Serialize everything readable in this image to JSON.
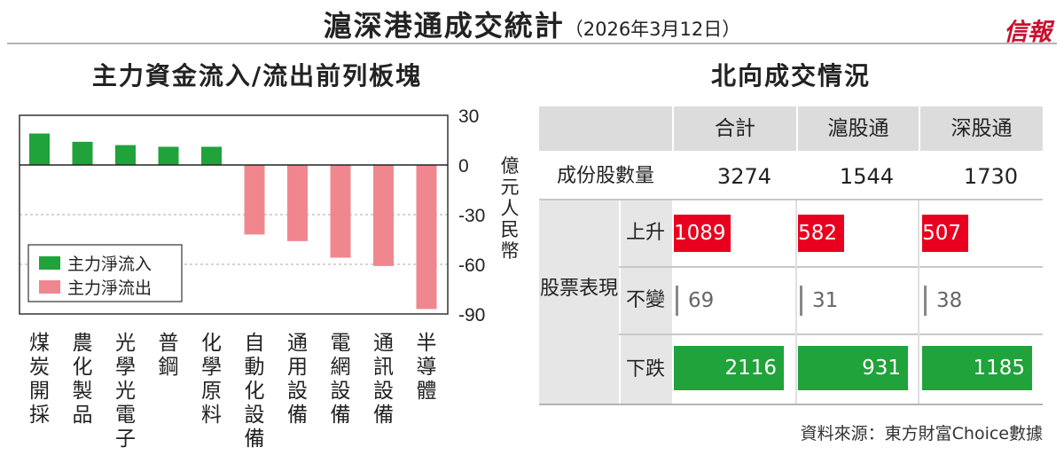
{
  "header": {
    "title": "滬深港通成交統計",
    "date": "（2026年3月12日）",
    "logo": "信報"
  },
  "chart_data": {
    "type": "bar",
    "title": "主力資金流入/流出前列板塊",
    "ylabel": "億元人民幣",
    "ylim": [
      -90,
      30
    ],
    "yticks": [
      30,
      0,
      -30,
      -60,
      -90
    ],
    "categories": [
      "煤炭開採",
      "農化製品",
      "光學光電子",
      "普鋼",
      "化學原料",
      "自動化設備",
      "通用設備",
      "電網設備",
      "通訊設備",
      "半導體"
    ],
    "values": [
      19,
      14,
      12,
      11,
      11,
      -42,
      -46,
      -56,
      -61,
      -87
    ],
    "legend": [
      "主力淨流入",
      "主力淨流出"
    ],
    "legend_position": "left",
    "grid": true,
    "colors": {
      "inflow": "#1fa33a",
      "outflow": "#f0878f"
    }
  },
  "table": {
    "title": "北向成交情況",
    "columns": [
      "合計",
      "滬股通",
      "深股通"
    ],
    "constituents": {
      "label": "成份股數量",
      "values": [
        "3274",
        "1544",
        "1730"
      ]
    },
    "group_label": "股票表現",
    "rows": [
      {
        "label": "上升",
        "values": [
          "1089",
          "582",
          "507"
        ],
        "color": "#e8001e"
      },
      {
        "label": "不變",
        "values": [
          "69",
          "31",
          "38"
        ],
        "color": "#888888"
      },
      {
        "label": "下跌",
        "values": [
          "2116",
          "931",
          "1185"
        ],
        "color": "#1fa33a"
      }
    ],
    "source": "資料來源：東方財富Choice數據"
  }
}
